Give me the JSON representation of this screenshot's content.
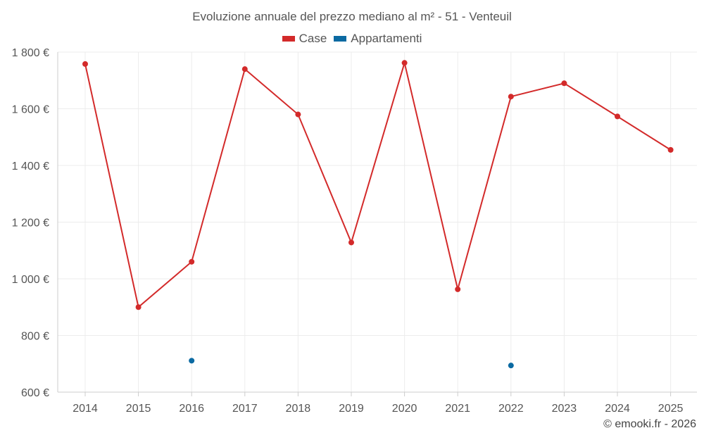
{
  "title": "Evoluzione annuale del prezzo mediano al m² - 51 - Venteuil",
  "credit": "© emooki.fr - 2026",
  "colors": {
    "case": "#d32a2a",
    "appartamenti": "#0b6aa2",
    "grid": "#ececec",
    "axis": "#cccccc"
  },
  "chart_data": {
    "type": "line",
    "title": "Evoluzione annuale del prezzo mediano al m² - 51 - Venteuil",
    "categories": [
      "2014",
      "2015",
      "2016",
      "2017",
      "2018",
      "2019",
      "2020",
      "2021",
      "2022",
      "2023",
      "2024",
      "2025"
    ],
    "series": [
      {
        "name": "Case",
        "color": "#d32a2a",
        "values": [
          1758,
          900,
          1060,
          1740,
          1580,
          1128,
          1762,
          963,
          1643,
          1690,
          1573,
          1455
        ]
      },
      {
        "name": "Appartamenti",
        "color": "#0b6aa2",
        "values": [
          null,
          null,
          711,
          null,
          null,
          null,
          null,
          null,
          694,
          null,
          null,
          null
        ]
      }
    ],
    "ylim": [
      600,
      1800
    ],
    "yticks": [
      600,
      800,
      1000,
      1200,
      1400,
      1600,
      1800
    ],
    "ytick_labels": [
      "600 €",
      "800 €",
      "1 000 €",
      "1 200 €",
      "1 400 €",
      "1 600 €",
      "1 800 €"
    ],
    "grid": true,
    "legend_position": "top-center"
  }
}
